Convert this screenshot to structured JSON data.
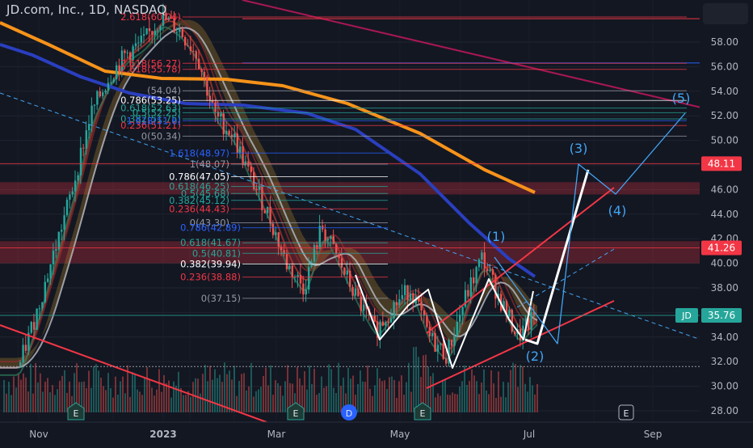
{
  "header": {
    "title": "JD.com, Inc., 1D, NASDAQ"
  },
  "price_axis": {
    "ticks": [
      "58.00",
      "56.00",
      "54.00",
      "52.00",
      "50.00",
      "48.00",
      "46.00",
      "44.00",
      "42.00",
      "40.00",
      "38.00",
      "36.00",
      "34.00",
      "32.00",
      "30.00",
      "28.00"
    ],
    "labels": [
      {
        "text": "48.11",
        "value": 48.11,
        "color": "#f23645"
      },
      {
        "text": "41.26",
        "value": 41.26,
        "color": "#f23645"
      },
      {
        "text": "35.76",
        "value": 35.76,
        "color": "#26a69a"
      }
    ],
    "symbol_badge": "JD"
  },
  "time_axis": {
    "ticks": [
      {
        "label": "Nov",
        "bold": false
      },
      {
        "label": "2023",
        "bold": true
      },
      {
        "label": "Mar",
        "bold": false
      },
      {
        "label": "May",
        "bold": false
      },
      {
        "label": "Jul",
        "bold": false
      },
      {
        "label": "Sep",
        "bold": false
      }
    ]
  },
  "chart_data": {
    "type": "line",
    "title": "JD.com, Inc., 1D, NASDAQ",
    "ylim": [
      27,
      62
    ],
    "x": [
      "Nov",
      "2023",
      "Mar",
      "May",
      "Jul",
      "Sep"
    ],
    "series": [],
    "price_path": [
      {
        "t": "Oct",
        "y": 31.5
      },
      {
        "t": "Nov",
        "y": 36
      },
      {
        "t": "Nov",
        "y": 41
      },
      {
        "t": "Nov",
        "y": 46
      },
      {
        "t": "Dec",
        "y": 52
      },
      {
        "t": "Dec",
        "y": 55
      },
      {
        "t": "Dec",
        "y": 57
      },
      {
        "t": "2023",
        "y": 58
      },
      {
        "t": "Jan",
        "y": 60
      },
      {
        "t": "Jan",
        "y": 59
      },
      {
        "t": "Feb",
        "y": 57
      },
      {
        "t": "Feb",
        "y": 52
      },
      {
        "t": "Feb",
        "y": 50.5
      },
      {
        "t": "Mar",
        "y": 47
      },
      {
        "t": "Mar",
        "y": 44
      },
      {
        "t": "Mar",
        "y": 40
      },
      {
        "t": "Mar",
        "y": 38
      },
      {
        "t": "Apr",
        "y": 43
      },
      {
        "t": "Apr",
        "y": 40
      },
      {
        "t": "Apr",
        "y": 37
      },
      {
        "t": "May",
        "y": 34.5
      },
      {
        "t": "May",
        "y": 36.5
      },
      {
        "t": "May",
        "y": 38
      },
      {
        "t": "May",
        "y": 34
      },
      {
        "t": "Jun",
        "y": 32.5
      },
      {
        "t": "Jun",
        "y": 37
      },
      {
        "t": "Jun",
        "y": 40.5
      },
      {
        "t": "Jun",
        "y": 37
      },
      {
        "t": "Jul",
        "y": 34
      },
      {
        "t": "Jul",
        "y": 35.76
      }
    ],
    "fib_levels": [
      {
        "label": "2.618(60.04)",
        "value": 60.04,
        "color": "#f23645"
      },
      {
        "label": "2.618(56.27)",
        "value": 56.27,
        "color": "#f23645"
      },
      {
        "label": "2.618(55.78)",
        "value": 55.78,
        "color": "#f23645"
      },
      {
        "label": "(54.04)",
        "value": 54.04,
        "color": "#9598a1"
      },
      {
        "label": "0.786(53.25)",
        "value": 53.25,
        "color": "#ffffff"
      },
      {
        "label": "0.618(52.63)",
        "value": 52.63,
        "color": "#26a69a"
      },
      {
        "label": "0.5(52.25)",
        "value": 52.25,
        "color": "#26a69a"
      },
      {
        "label": "0.382(51.75)",
        "value": 51.75,
        "color": "#26a69a"
      },
      {
        "label": "0.236(51.21)",
        "value": 51.21,
        "color": "#f23645"
      },
      {
        "label": "1.618(51.6)",
        "value": 51.6,
        "color": "#2962ff"
      },
      {
        "label": "0(50.34)",
        "value": 50.34,
        "color": "#9598a1"
      },
      {
        "label": "1.618(48.97)",
        "value": 48.97,
        "color": "#2962ff"
      },
      {
        "label": "1(48.07)",
        "value": 48.07,
        "color": "#9598a1"
      },
      {
        "label": "0.786(47.05)",
        "value": 47.05,
        "color": "#ffffff"
      },
      {
        "label": "0.618(46.25)",
        "value": 46.25,
        "color": "#26a69a"
      },
      {
        "label": "0.5(45.68)",
        "value": 45.68,
        "color": "#26a69a"
      },
      {
        "label": "0.382(45.12)",
        "value": 45.12,
        "color": "#26a69a"
      },
      {
        "label": "0.236(44.43)",
        "value": 44.43,
        "color": "#f23645"
      },
      {
        "label": "0(43.30)",
        "value": 43.3,
        "color": "#9598a1"
      },
      {
        "label": "0.786(42.89)",
        "value": 42.89,
        "color": "#2962ff"
      },
      {
        "label": "0.618(41.67)",
        "value": 41.67,
        "color": "#26a69a"
      },
      {
        "label": "0.5(40.81)",
        "value": 40.81,
        "color": "#26a69a"
      },
      {
        "label": "0.382(39.94)",
        "value": 39.94,
        "color": "#ffffff"
      },
      {
        "label": "0.236(38.88)",
        "value": 38.88,
        "color": "#f23645"
      },
      {
        "label": "0(37.15)",
        "value": 37.15,
        "color": "#9598a1"
      }
    ],
    "wave_labels": [
      {
        "text": "(1)",
        "t": "Jun",
        "y": 40.9
      },
      {
        "text": "(2)",
        "t": "Jul",
        "y": 33.3
      },
      {
        "text": "(3)",
        "t": "Aug",
        "y": 49.6
      },
      {
        "text": "(4)",
        "t": "Aug",
        "y": 44.4
      },
      {
        "text": "(5)",
        "t": "Sep",
        "y": 53.5
      }
    ],
    "wave_projection": [
      {
        "t": "Jul",
        "y": 34.3
      },
      {
        "t": "Aug",
        "y": 48.2
      },
      {
        "t": "Aug",
        "y": 45.7
      },
      {
        "t": "Sep",
        "y": 52.2
      }
    ],
    "white_projection": [
      {
        "t": "Jul",
        "y": 33.6
      },
      {
        "t": "Aug",
        "y": 47
      }
    ],
    "earnings_markers": [
      {
        "label": "E",
        "t": "Nov"
      },
      {
        "label": "E",
        "t": "Mar"
      },
      {
        "label": "D",
        "t": "Apr"
      },
      {
        "label": "E",
        "t": "May"
      },
      {
        "label": "E",
        "t": "Aug"
      }
    ],
    "zones": [
      {
        "from": 45.6,
        "to": 46.6,
        "color": "#f23645"
      },
      {
        "from": 40.0,
        "to": 41.8,
        "color": "#f23645"
      }
    ]
  },
  "colors": {
    "background": "#131722",
    "up": "#26a69a",
    "down": "#ef5350",
    "ma200": "#f7931a",
    "ma100": "#2a3fbf",
    "ma50": "#b2b5be"
  }
}
